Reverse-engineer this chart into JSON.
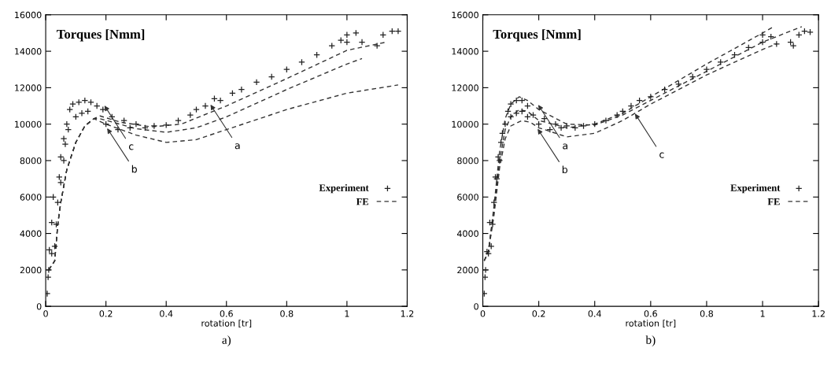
{
  "chart_data": [
    {
      "type": "line",
      "title": "Torques [Nmm]",
      "xlabel": "rotation [tr]",
      "xlim": [
        0,
        1.2
      ],
      "xticks": [
        0,
        0.2,
        0.4,
        0.6,
        0.8,
        1,
        1.2
      ],
      "ylim": [
        0,
        16000
      ],
      "yticks": [
        0,
        2000,
        4000,
        6000,
        8000,
        10000,
        12000,
        14000,
        16000
      ],
      "grid": false,
      "legend": "right",
      "series": [
        {
          "name": "Experiment",
          "type": "scatter",
          "marker": "cross",
          "color": "#222222",
          "x": [
            0.005,
            0.008,
            0.01,
            0.012,
            0.02,
            0.02,
            0.025,
            0.03,
            0.035,
            0.04,
            0.045,
            0.05,
            0.05,
            0.06,
            0.06,
            0.065,
            0.07,
            0.075,
            0.08,
            0.09,
            0.1,
            0.11,
            0.12,
            0.13,
            0.14,
            0.15,
            0.17,
            0.19,
            0.2,
            0.22,
            0.24,
            0.26,
            0.28,
            0.3,
            0.33,
            0.36,
            0.4,
            0.44,
            0.48,
            0.5,
            0.53,
            0.56,
            0.58,
            0.62,
            0.65,
            0.7,
            0.75,
            0.8,
            0.85,
            0.9,
            0.95,
            0.98,
            1.0,
            1.03,
            1.0,
            1.05,
            1.1,
            1.12,
            1.15,
            1.17
          ],
          "values": [
            700,
            1600,
            2000,
            3100,
            2900,
            4600,
            6000,
            3300,
            4500,
            5700,
            7100,
            6800,
            8200,
            8000,
            9200,
            8900,
            10000,
            9700,
            10800,
            11100,
            10400,
            11200,
            10600,
            11300,
            10700,
            11200,
            11000,
            10800,
            10000,
            10400,
            9700,
            10200,
            9800,
            10000,
            9800,
            9900,
            9950,
            10200,
            10500,
            10800,
            11000,
            11400,
            11300,
            11700,
            11900,
            12300,
            12600,
            13000,
            13400,
            13800,
            14300,
            14600,
            14900,
            15000,
            14500,
            14500,
            14300,
            14900,
            15100,
            15100
          ]
        },
        {
          "name": "FE",
          "line_style": "dashed",
          "color": "#333333",
          "x": [
            0.01,
            0.03,
            0.04,
            0.05,
            0.07,
            0.1,
            0.13,
            0.16,
            0.18,
            0.25,
            0.35,
            0.45,
            0.6,
            0.8,
            1.0,
            1.13
          ],
          "values": [
            2000,
            2500,
            4500,
            5700,
            7500,
            9000,
            9900,
            10300,
            10450,
            10100,
            9850,
            10000,
            11000,
            12500,
            14050,
            14500
          ]
        },
        {
          "line_style": "dashed",
          "color": "#333333",
          "x": [
            0.01,
            0.03,
            0.04,
            0.05,
            0.07,
            0.1,
            0.13,
            0.16,
            0.18,
            0.3,
            0.4,
            0.5,
            0.6,
            0.8,
            1.0,
            1.05
          ],
          "values": [
            2000,
            2500,
            4500,
            5700,
            7500,
            9000,
            9900,
            10300,
            10300,
            9750,
            9550,
            9800,
            10400,
            11900,
            13300,
            13600
          ]
        },
        {
          "line_style": "dashed",
          "color": "#333333",
          "x": [
            0.01,
            0.03,
            0.04,
            0.05,
            0.07,
            0.1,
            0.13,
            0.16,
            0.2,
            0.3,
            0.4,
            0.5,
            0.6,
            0.8,
            1.0,
            1.17
          ],
          "values": [
            2000,
            2500,
            4500,
            5700,
            7500,
            9000,
            9900,
            10300,
            10000,
            9400,
            9000,
            9150,
            9700,
            10800,
            11700,
            12150
          ]
        }
      ],
      "annotations": [
        {
          "text": "c",
          "x": 0.195,
          "y": 11020
        },
        {
          "text": "b",
          "x": 0.204,
          "y": 9770
        },
        {
          "text": "a",
          "x": 0.547,
          "y": 11070
        },
        "a)"
      ]
    },
    {
      "type": "line",
      "title": "Torques [Nmm]",
      "xlabel": "rotation [tr]",
      "xlim": [
        0,
        1.2
      ],
      "xticks": [
        0,
        0.2,
        0.4,
        0.6,
        0.8,
        1,
        1.2
      ],
      "ylim": [
        0,
        16000
      ],
      "yticks": [
        0,
        2000,
        4000,
        6000,
        8000,
        10000,
        12000,
        14000,
        16000
      ],
      "grid": false,
      "legend": "right",
      "series": [
        {
          "name": "Experiment",
          "type": "scatter",
          "marker": "cross",
          "color": "#222222",
          "x": [
            0.005,
            0.008,
            0.01,
            0.015,
            0.02,
            0.025,
            0.03,
            0.035,
            0.04,
            0.045,
            0.05,
            0.055,
            0.06,
            0.065,
            0.07,
            0.08,
            0.09,
            0.1,
            0.1,
            0.12,
            0.12,
            0.14,
            0.14,
            0.16,
            0.16,
            0.18,
            0.2,
            0.22,
            0.24,
            0.26,
            0.28,
            0.3,
            0.33,
            0.36,
            0.4,
            0.44,
            0.48,
            0.5,
            0.53,
            0.56,
            0.6,
            0.65,
            0.7,
            0.75,
            0.8,
            0.85,
            0.9,
            0.95,
            1.0,
            1.0,
            1.03,
            1.05,
            1.1,
            1.11,
            1.13,
            1.15,
            1.17
          ],
          "values": [
            700,
            1600,
            2000,
            3000,
            2900,
            4600,
            3300,
            4500,
            5700,
            7100,
            7000,
            8200,
            8000,
            9000,
            9500,
            10000,
            10700,
            11100,
            10400,
            11300,
            10600,
            11300,
            10700,
            11000,
            10400,
            10500,
            10000,
            10300,
            9700,
            10000,
            9800,
            9900,
            9800,
            9900,
            10000,
            10200,
            10500,
            10700,
            11000,
            11300,
            11500,
            11900,
            12200,
            12600,
            13000,
            13400,
            13800,
            14200,
            14500,
            14900,
            14800,
            14400,
            14500,
            14300,
            14900,
            15100,
            15050
          ]
        },
        {
          "name": "FE",
          "line_style": "dashed",
          "color": "#333333",
          "x": [
            0.005,
            0.02,
            0.04,
            0.06,
            0.08,
            0.1,
            0.13,
            0.16,
            0.2,
            0.3,
            0.4,
            0.5,
            0.6,
            0.8,
            1.0,
            1.14
          ],
          "values": [
            2500,
            3000,
            5500,
            8500,
            10300,
            11100,
            11500,
            11300,
            10800,
            10000,
            9950,
            10500,
            11300,
            12900,
            14500,
            15350
          ]
        },
        {
          "line_style": "dashed",
          "color": "#333333",
          "x": [
            0.005,
            0.02,
            0.04,
            0.06,
            0.08,
            0.1,
            0.13,
            0.16,
            0.2,
            0.3,
            0.4,
            0.5,
            0.6,
            0.8,
            1.0,
            1.04
          ],
          "values": [
            2500,
            3000,
            5300,
            8000,
            9700,
            10400,
            10800,
            10700,
            10200,
            9800,
            10000,
            10600,
            11500,
            13300,
            15000,
            15350
          ]
        },
        {
          "line_style": "dashed",
          "color": "#333333",
          "x": [
            0.005,
            0.02,
            0.04,
            0.06,
            0.08,
            0.1,
            0.14,
            0.17,
            0.2,
            0.3,
            0.4,
            0.5,
            0.6,
            0.8,
            1.0,
            1.05
          ],
          "values": [
            2500,
            3000,
            5000,
            7600,
            9200,
            9900,
            10200,
            10100,
            9800,
            9300,
            9500,
            10200,
            11100,
            12700,
            14100,
            14400
          ]
        }
      ],
      "annotations": [
        {
          "text": "a",
          "x": 0.198,
          "y": 11060
        },
        {
          "text": "b",
          "x": 0.196,
          "y": 9740
        },
        {
          "text": "c",
          "x": 0.544,
          "y": 10575
        },
        "b)"
      ]
    }
  ]
}
